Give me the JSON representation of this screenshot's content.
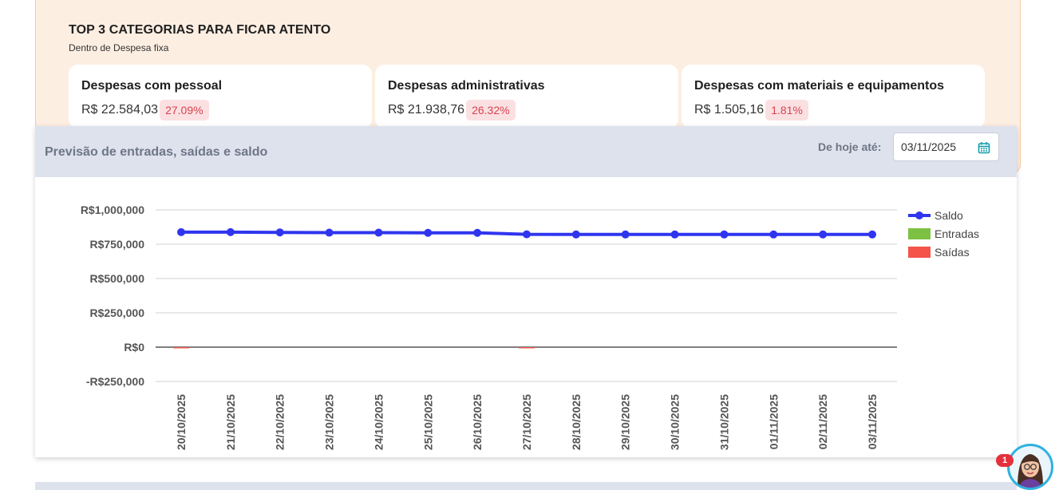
{
  "top3": {
    "title": "TOP 3 CATEGORIAS PARA FICAR ATENTO",
    "subtitle": "Dentro de Despesa fixa",
    "cards": [
      {
        "name": "Despesas com pessoal",
        "amount": "R$ 22.584,03",
        "pct": "27.09%"
      },
      {
        "name": "Despesas administrativas",
        "amount": "R$ 21.938,76",
        "pct": "26.32%"
      },
      {
        "name": "Despesas com materiais e equipamentos",
        "amount": "R$ 1.505,16",
        "pct": "1.81%"
      }
    ]
  },
  "forecast": {
    "title": "Previsão de entradas, saídas e saldo",
    "date_label": "De hoje até:",
    "date_value": "03/11/2025"
  },
  "notification_count": "1",
  "colors": {
    "saldo": "#2f35ef",
    "entradas": "#7dc142",
    "saidas": "#f4544a",
    "pct_text": "#d8434f"
  },
  "chart_data": {
    "type": "line",
    "categories": [
      "20/10/2025",
      "21/10/2025",
      "22/10/2025",
      "23/10/2025",
      "24/10/2025",
      "25/10/2025",
      "26/10/2025",
      "27/10/2025",
      "28/10/2025",
      "29/10/2025",
      "30/10/2025",
      "31/10/2025",
      "01/11/2025",
      "02/11/2025",
      "03/11/2025"
    ],
    "y_ticks": [
      1000000,
      750000,
      500000,
      250000,
      0,
      -250000
    ],
    "y_tick_labels": [
      "R$1,000,000",
      "R$750,000",
      "R$500,000",
      "R$250,000",
      "R$0",
      "-R$250,000"
    ],
    "ylim": [
      -250000,
      1000000
    ],
    "series": [
      {
        "name": "Saldo",
        "type": "line",
        "values": [
          838000,
          838000,
          836000,
          834000,
          834000,
          833000,
          833000,
          822000,
          821000,
          821000,
          821000,
          821000,
          821000,
          821000,
          821000
        ]
      },
      {
        "name": "Entradas",
        "type": "bar",
        "values": [
          0,
          0,
          0,
          0,
          0,
          0,
          0,
          0,
          0,
          0,
          0,
          0,
          0,
          0,
          0
        ]
      },
      {
        "name": "Saídas",
        "type": "bar",
        "values": [
          -5000,
          0,
          0,
          0,
          0,
          0,
          0,
          -5000,
          0,
          0,
          0,
          0,
          0,
          0,
          0
        ]
      }
    ],
    "legend": "right"
  }
}
